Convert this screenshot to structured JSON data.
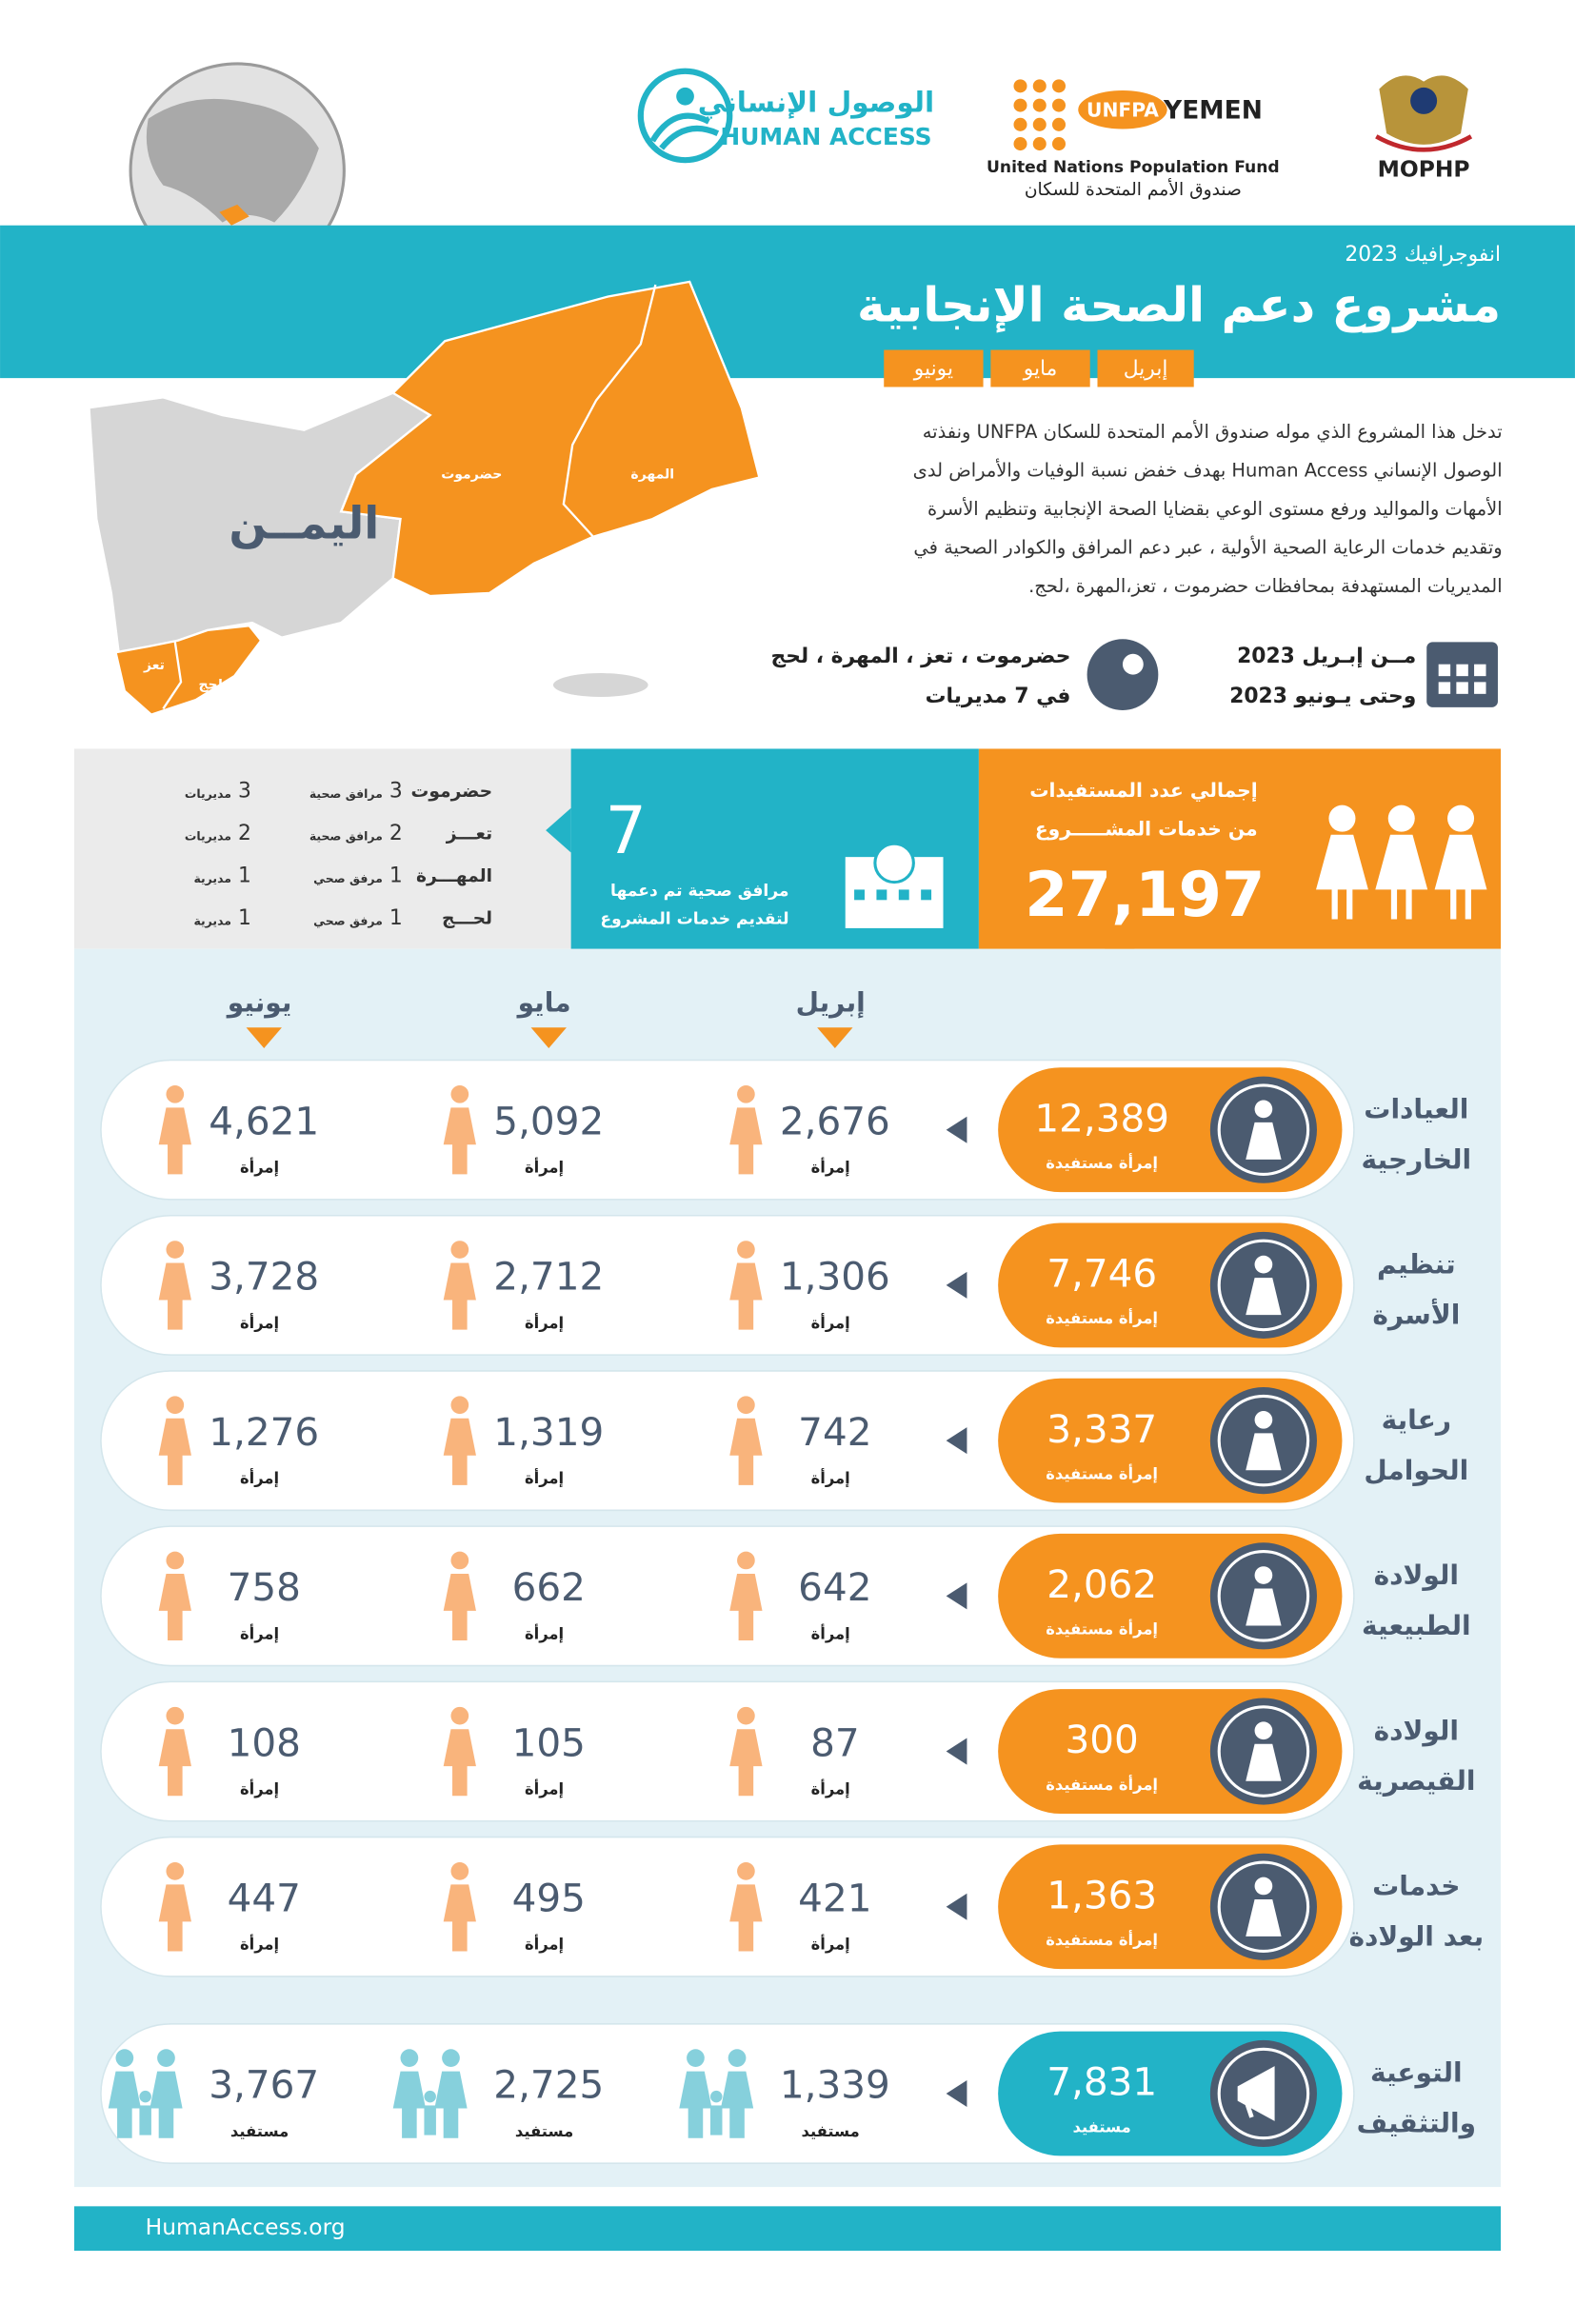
{
  "logos": {
    "human_access_ar": "الوصول الإنساني",
    "human_access_en": "HUMAN ACCESS",
    "unfpa": "UNFPA",
    "yemen": "YEMEN",
    "unfpa_en": "United Nations Population Fund",
    "unfpa_ar": "صندوق الأمم المتحدة للسكان",
    "mophp": "MOPHP"
  },
  "header": {
    "kicker": "انفوجرافيك 2023",
    "title": "مشروع دعم الصحة الإنجابية",
    "months": [
      "إبريل",
      "مايو",
      "يونيو"
    ]
  },
  "description": [
    "تدخل هذا المشروع  الذي موله صندوق الأمم المتحدة للسكان UNFPA ونفذته",
    "الوصول الإنساني Human Access بهدف خفض نسبة الوفيات والأمراض لدى",
    "الأمهات والمواليد ورفع مستوى الوعي بقضايا الصحة الإنجابية  وتنظيم الأسرة",
    "وتقديم خدمات الرعاية الصحية الأولية  ، عبر دعم المرافق والكوادر الصحية  في",
    "المديريات المستهدفة بمحافظات حضرموت ، تعز،المهرة ،لحج."
  ],
  "map": {
    "country": "اليمــن",
    "regions": [
      "حضرموت",
      "المهرة",
      "تعز",
      "لحج"
    ]
  },
  "coverage": {
    "governorates": "حضرموت ، تعز ، المهرة ، لحج",
    "districts": "في 7 مديريات",
    "from": "مــن إبـريل 2023",
    "to": "وحتى يـونيو 2023"
  },
  "districts_table": {
    "rows": [
      [
        "حضرموت",
        "3",
        "مرافق صحية",
        "3",
        "مديريات"
      ],
      [
        "تعـــز",
        "2",
        "مرافق صحية",
        "2",
        "مديريات"
      ],
      [
        "المهـــرة",
        "1",
        "مرفق صحي",
        "1",
        "مديرية"
      ],
      [
        "لحـــج",
        "1",
        "مرفق صحي",
        "1",
        "مديرية"
      ]
    ]
  },
  "facilities": {
    "count": "7",
    "label": [
      "مرافق صحية تم دعمها",
      "لتقديم خدمات المشروع"
    ]
  },
  "beneficiaries": {
    "label": [
      "إجمالي عدد المستفيدات",
      "من خدمات المشـــــروع"
    ],
    "total": "27,197"
  },
  "columns": [
    "إبريل",
    "مايو",
    "يونيو"
  ],
  "services": [
    {
      "name": [
        "العيادات",
        "الخارجية"
      ],
      "total": "12,389",
      "total_label": "إمرأة مستفيدة",
      "monthly": [
        "2,676",
        "5,092",
        "4,621"
      ],
      "unit": "إمرأة"
    },
    {
      "name": [
        "تنظيم",
        "الأسرة"
      ],
      "total": "7,746",
      "total_label": "إمرأة مستفيدة",
      "monthly": [
        "1,306",
        "2,712",
        "3,728"
      ],
      "unit": "إمرأة"
    },
    {
      "name": [
        "رعاية",
        "الحوامل"
      ],
      "total": "3,337",
      "total_label": "إمرأة مستفيدة",
      "monthly": [
        "742",
        "1,319",
        "1,276"
      ],
      "unit": "إمرأة"
    },
    {
      "name": [
        "الولادة",
        "الطبيعية"
      ],
      "total": "2,062",
      "total_label": "إمرأة مستفيدة",
      "monthly": [
        "642",
        "662",
        "758"
      ],
      "unit": "إمرأة"
    },
    {
      "name": [
        "الولادة",
        "القيصرية"
      ],
      "total": "300",
      "total_label": "إمرأة مستفيدة",
      "monthly": [
        "87",
        "105",
        "108"
      ],
      "unit": "إمرأة"
    },
    {
      "name": [
        "خدمات",
        "بعد الولادة"
      ],
      "total": "1,363",
      "total_label": "إمرأة مستفيدة",
      "monthly": [
        "421",
        "495",
        "447"
      ],
      "unit": "إمرأة"
    }
  ],
  "awareness": {
    "name": [
      "التوعية",
      "والتثقيف"
    ],
    "total": "7,831",
    "total_label": "مستفيد",
    "monthly": [
      "1,339",
      "2,725",
      "3,767"
    ],
    "unit": "مستفيد"
  },
  "footer": "HumanAccess.org"
}
